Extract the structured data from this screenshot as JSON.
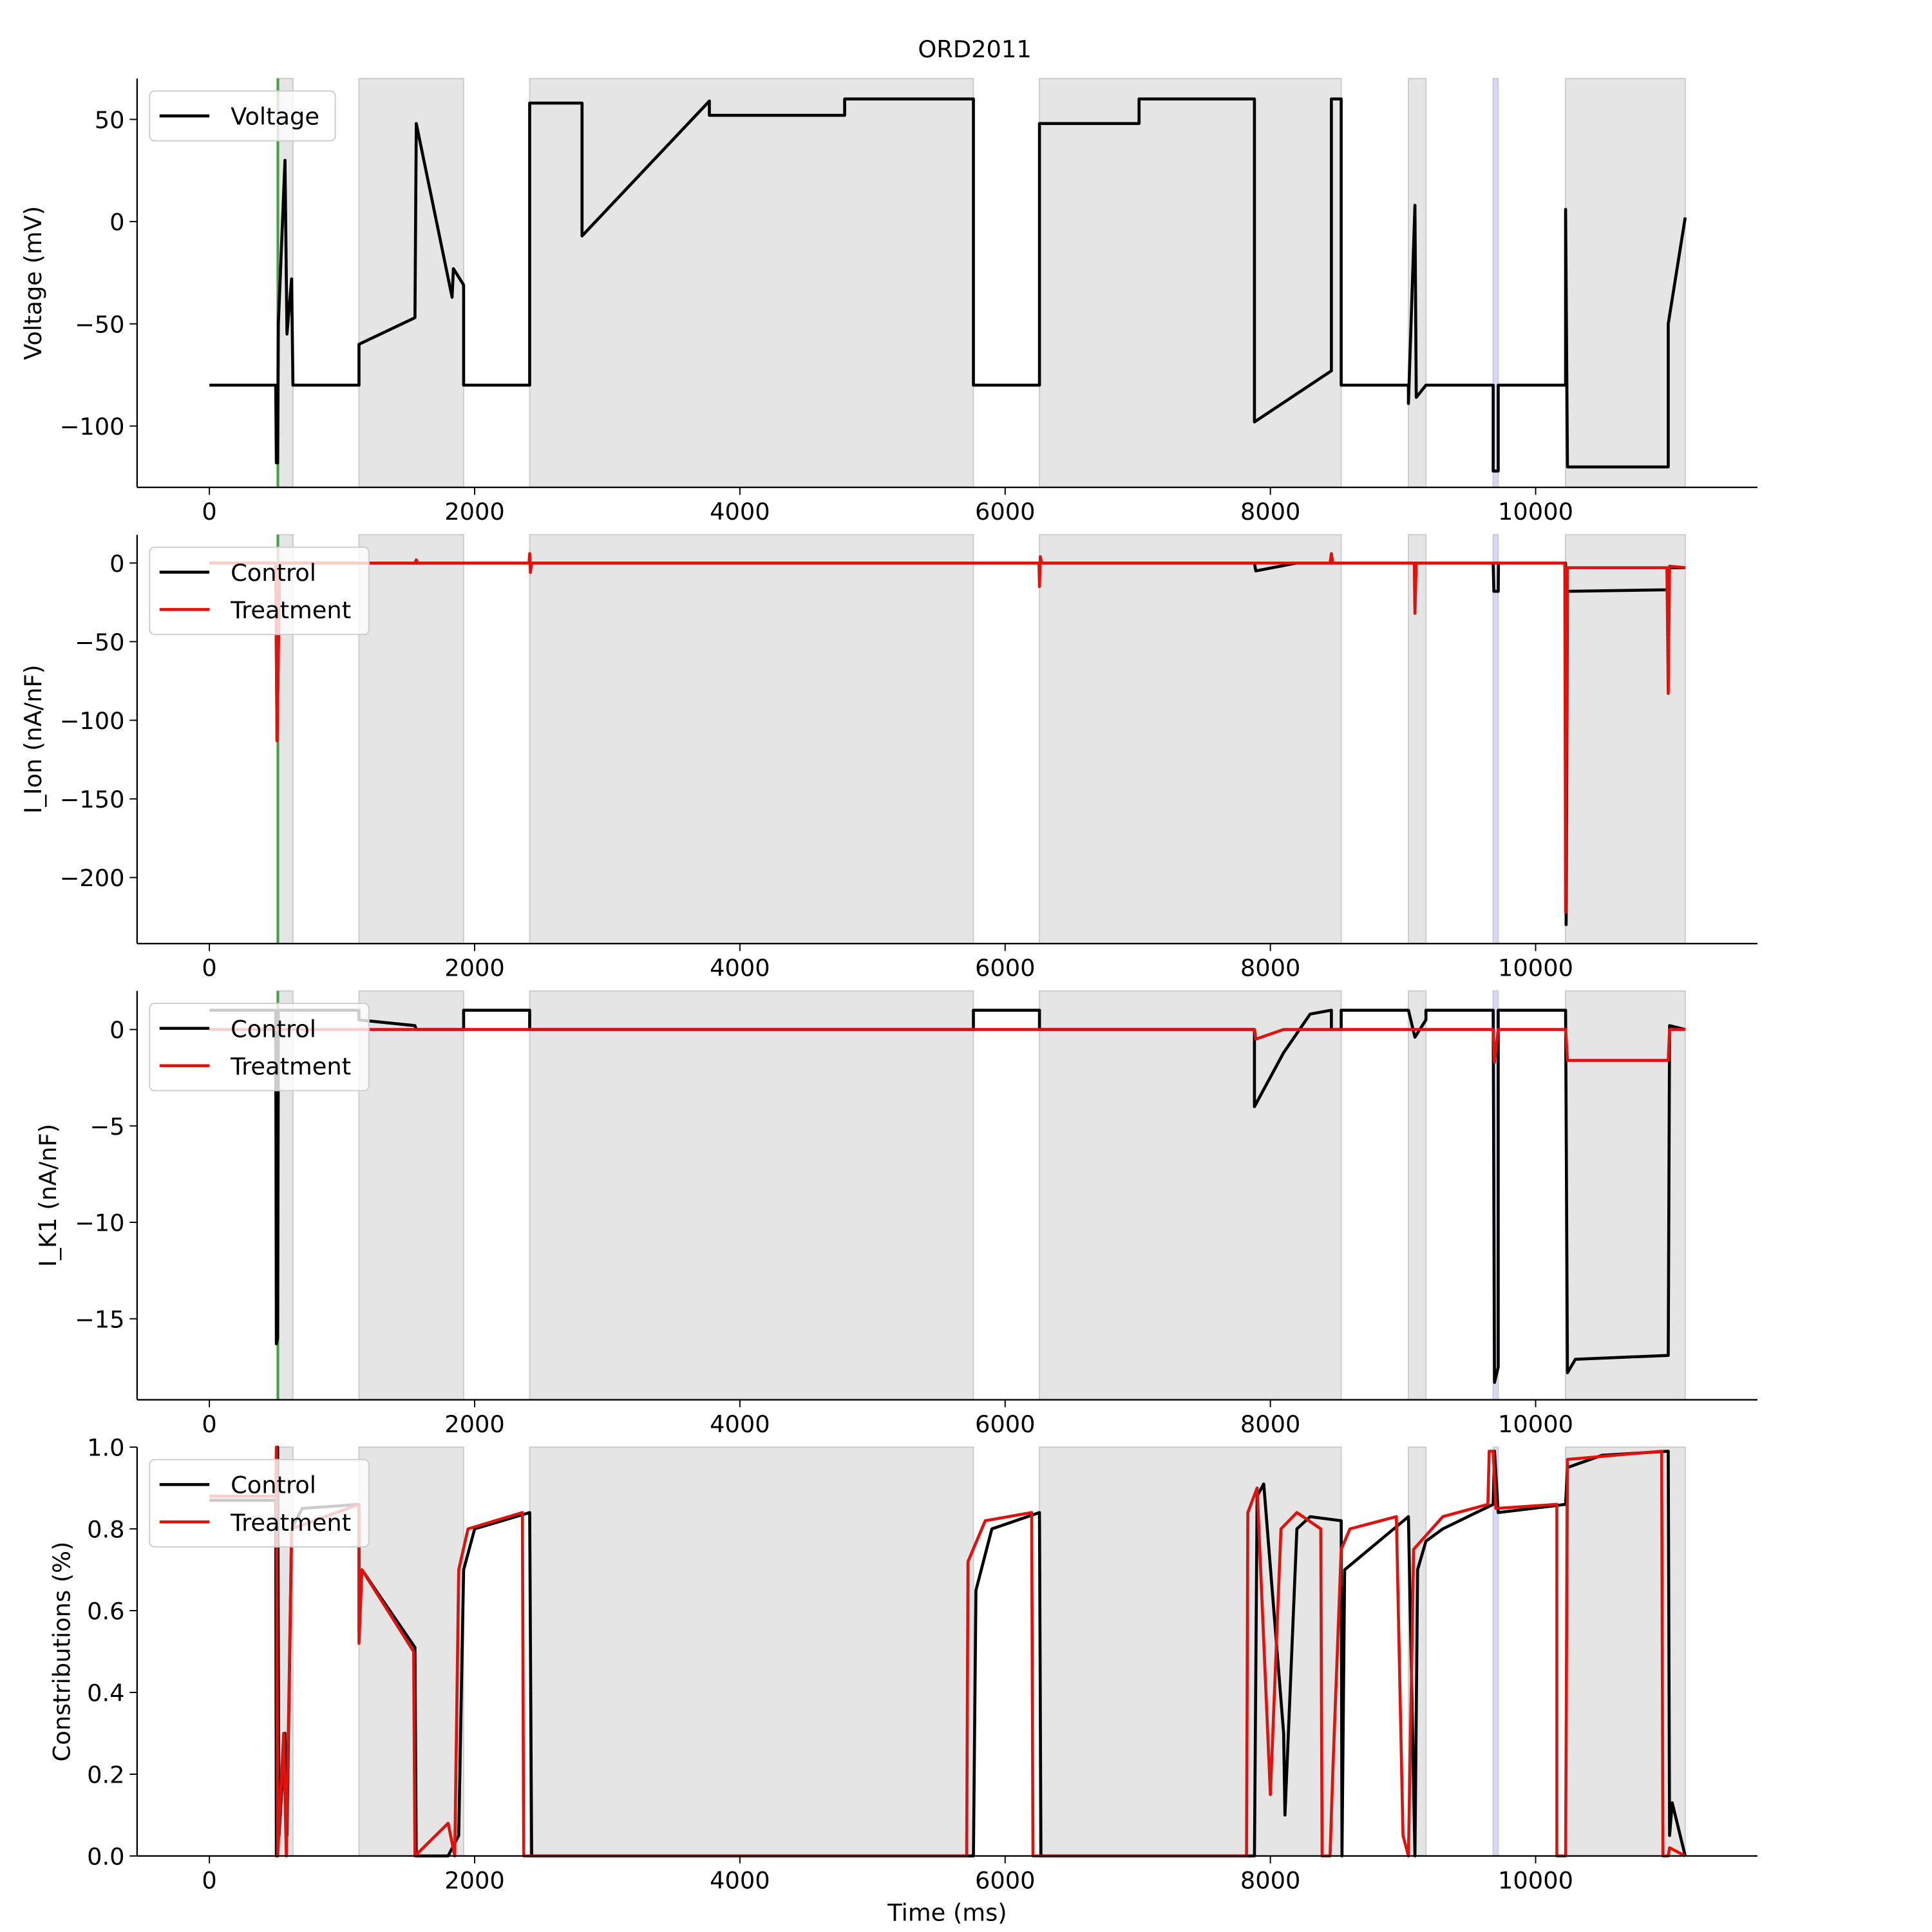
{
  "spans": [
    {
      "start": 508,
      "end": 630,
      "color": "#e5e5e5"
    },
    {
      "start": 1128,
      "end": 1917,
      "color": "#e5e5e5"
    },
    {
      "start": 2415,
      "end": 5761,
      "color": "#e5e5e5"
    },
    {
      "start": 6259,
      "end": 8534,
      "color": "#e5e5e5"
    },
    {
      "start": 9041,
      "end": 9173,
      "color": "#e5e5e5"
    },
    {
      "start": 10226,
      "end": 11128,
      "color": "#e5e5e5"
    },
    {
      "start": 9680,
      "end": 9718,
      "color": "#d8d8ff"
    }
  ],
  "chart_data": [
    {
      "type": "line",
      "title": "ORD2011",
      "ylabel": "Voltage (mV)",
      "legend": "upper left",
      "xlim": [
        -545,
        11673
      ],
      "ylim": [
        -130,
        70
      ],
      "xticks": [
        0,
        2000,
        4000,
        6000,
        8000,
        10000
      ],
      "yticks": [
        {
          "value": -100,
          "label": "−100"
        },
        {
          "value": -50,
          "label": "−50"
        },
        0,
        50
      ],
      "vline": 517,
      "vline_color": "#4c9a4c",
      "series": [
        {
          "name": "Voltage",
          "color": "#000000",
          "x": [
            0,
            500,
            505,
            515,
            520,
            570,
            585,
            620,
            630,
            1128,
            1128,
            1550,
            1560,
            1830,
            1840,
            1917,
            1917,
            2415,
            2415,
            2810,
            2810,
            3770,
            3770,
            4790,
            4790,
            5761,
            5761,
            6259,
            6259,
            7010,
            7010,
            7880,
            7880,
            8460,
            8460,
            8534,
            8534,
            9041,
            9041,
            9090,
            9100,
            9173,
            9680,
            9680,
            9718,
            9718,
            10226,
            10226,
            10240,
            11000,
            11000,
            11128
          ],
          "values": [
            -80,
            -80,
            -118,
            -118,
            -50,
            30,
            -55,
            -28,
            -80,
            -80,
            -60,
            -47,
            48,
            -37,
            -23,
            -31,
            -80,
            -80,
            58,
            58,
            -7,
            59,
            52,
            52,
            60,
            60,
            -80,
            -80,
            48,
            48,
            60,
            60,
            -98,
            -73,
            60,
            60,
            -80,
            -80,
            -89,
            8,
            -86,
            -80,
            -80,
            -122,
            -122,
            -80,
            -80,
            6,
            -120,
            -120,
            -50,
            2
          ]
        }
      ]
    },
    {
      "type": "line",
      "ylabel": "I_Ion (nA/nF)",
      "legend": "upper left",
      "xlim": [
        -545,
        11673
      ],
      "ylim": [
        -242,
        18
      ],
      "xticks": [
        0,
        2000,
        4000,
        6000,
        8000,
        10000
      ],
      "yticks": [
        {
          "value": -200,
          "label": "−200"
        },
        {
          "value": -150,
          "label": "−150"
        },
        {
          "value": -100,
          "label": "−100"
        },
        {
          "value": -50,
          "label": "−50"
        },
        0
      ],
      "vline": 517,
      "vline_color": "#4c9a4c",
      "series": [
        {
          "name": "Control",
          "color": "#000000",
          "x": [
            0,
            500,
            510,
            530,
            7880,
            7890,
            8200,
            9680,
            9685,
            9718,
            9720,
            10226,
            10230,
            10240,
            11000,
            11005,
            11128
          ],
          "values": [
            0,
            0,
            -113,
            0,
            0,
            -5,
            0,
            0,
            -18,
            -18,
            0,
            0,
            -230,
            -18,
            -17,
            -3,
            -3
          ]
        },
        {
          "name": "Treatment",
          "color": "#e0120e",
          "x": [
            0,
            500,
            510,
            530,
            1550,
            1560,
            1570,
            2410,
            2415,
            2420,
            2430,
            6255,
            6259,
            6265,
            6275,
            8450,
            8460,
            8470,
            9085,
            9090,
            9100,
            10220,
            10226,
            10240,
            10990,
            11000,
            11010,
            11128
          ],
          "values": [
            0,
            0,
            -113,
            0,
            0,
            2,
            0,
            0,
            6,
            -6,
            0,
            0,
            -15,
            4,
            0,
            0,
            6,
            0,
            0,
            -32,
            0,
            0,
            -222,
            -3,
            -3,
            -83,
            -2,
            -3
          ]
        }
      ]
    },
    {
      "type": "line",
      "ylabel": "I_K1 (nA/nF)",
      "legend": "upper left",
      "xlim": [
        -545,
        11673
      ],
      "ylim": [
        -19.2,
        2
      ],
      "xticks": [
        0,
        2000,
        4000,
        6000,
        8000,
        10000
      ],
      "yticks": [
        {
          "value": -15,
          "label": "−15"
        },
        {
          "value": -10,
          "label": "−10"
        },
        {
          "value": -5,
          "label": "−5"
        },
        0
      ],
      "vline": 517,
      "vline_color": "#4c9a4c",
      "series": [
        {
          "name": "Control",
          "color": "#000000",
          "x": [
            0,
            500,
            505,
            515,
            520,
            1128,
            1128,
            1550,
            1560,
            1917,
            1917,
            2415,
            2415,
            5761,
            5761,
            6259,
            6259,
            7880,
            7880,
            8100,
            8300,
            8460,
            8460,
            8534,
            8534,
            9041,
            9090,
            9173,
            9173,
            9680,
            9690,
            9718,
            9718,
            10226,
            10240,
            10300,
            11000,
            11010,
            11128
          ],
          "values": [
            1,
            1,
            -16.3,
            -16,
            1,
            1,
            0.5,
            0.2,
            0,
            0,
            1,
            1,
            0,
            0,
            1,
            1,
            0,
            0,
            -4,
            -1.2,
            0.8,
            1,
            0,
            0,
            1,
            1,
            -0.4,
            0.5,
            1,
            1,
            -18.3,
            -17.5,
            1,
            1,
            -17.8,
            -17.1,
            -16.9,
            0.2,
            0
          ]
        },
        {
          "name": "Treatment",
          "color": "#e0120e",
          "x": [
            0,
            7880,
            7890,
            8100,
            9680,
            9690,
            9718,
            10226,
            10240,
            11000,
            11010,
            11128
          ],
          "values": [
            0,
            0,
            -0.5,
            0,
            0,
            -1.7,
            0,
            0,
            -1.6,
            -1.6,
            0,
            0
          ]
        }
      ]
    },
    {
      "type": "line",
      "ylabel": "Constributions (%)",
      "xlabel": "Time (ms)",
      "legend": "upper left",
      "xlim": [
        -545,
        11673
      ],
      "ylim": [
        0,
        1
      ],
      "xticks": [
        0,
        2000,
        4000,
        6000,
        8000,
        10000
      ],
      "yticks": [
        {
          "value": 0,
          "label": "0.0"
        },
        0.2,
        0.4,
        0.6,
        0.8,
        {
          "value": 1,
          "label": "1.0"
        }
      ],
      "series": [
        {
          "name": "Control",
          "color": "#000000",
          "x": [
            0,
            500,
            505,
            515,
            525,
            570,
            585,
            620,
            700,
            1128,
            1128,
            1150,
            1550,
            1560,
            1800,
            1880,
            1917,
            2000,
            2415,
            2430,
            5761,
            5780,
            5900,
            6259,
            6270,
            7880,
            7900,
            7950,
            8100,
            8110,
            8200,
            8300,
            8534,
            8540,
            8560,
            9041,
            9090,
            9110,
            9173,
            9300,
            9680,
            9690,
            9718,
            10226,
            10240,
            10500,
            11000,
            11010,
            11030,
            11128
          ],
          "values": [
            0.87,
            0.87,
            0,
            1,
            0.05,
            0.3,
            0.05,
            0.8,
            0.85,
            0.86,
            0.55,
            0.7,
            0.51,
            0,
            0,
            0.05,
            0.7,
            0.8,
            0.84,
            0,
            0,
            0.65,
            0.8,
            0.84,
            0,
            0,
            0.88,
            0.91,
            0.3,
            0.1,
            0.8,
            0.83,
            0.82,
            0,
            0.7,
            0.83,
            0,
            0.7,
            0.77,
            0.8,
            0.86,
            0.99,
            0.84,
            0.86,
            0.95,
            0.98,
            0.99,
            0.05,
            0.13,
            0
          ]
        },
        {
          "name": "Treatment",
          "color": "#e0120e",
          "x": [
            0,
            500,
            505,
            515,
            560,
            580,
            620,
            1128,
            1128,
            1150,
            1540,
            1550,
            1800,
            1850,
            1880,
            1950,
            2360,
            2370,
            5710,
            5720,
            5850,
            6200,
            6210,
            7820,
            7830,
            7900,
            8000,
            8080,
            8200,
            8380,
            8390,
            8450,
            8470,
            8534,
            8600,
            8950,
            9000,
            9041,
            9080,
            9300,
            9640,
            9650,
            9680,
            9700,
            10160,
            10160,
            10226,
            10240,
            10950,
            10960,
            11000,
            11010,
            11128
          ],
          "values": [
            0.88,
            0.88,
            1,
            0,
            0.3,
            0,
            0.8,
            0.86,
            0.52,
            0.7,
            0.5,
            0,
            0.08,
            0,
            0.7,
            0.8,
            0.84,
            0,
            0,
            0.72,
            0.82,
            0.84,
            0,
            0,
            0.84,
            0.9,
            0.15,
            0.8,
            0.84,
            0.8,
            0,
            0,
            0.2,
            0.75,
            0.8,
            0.83,
            0.05,
            0,
            0.75,
            0.83,
            0.86,
            0.99,
            0.99,
            0.85,
            0.86,
            0,
            0,
            0.97,
            0.99,
            0,
            0,
            0.02,
            0
          ]
        }
      ]
    }
  ]
}
